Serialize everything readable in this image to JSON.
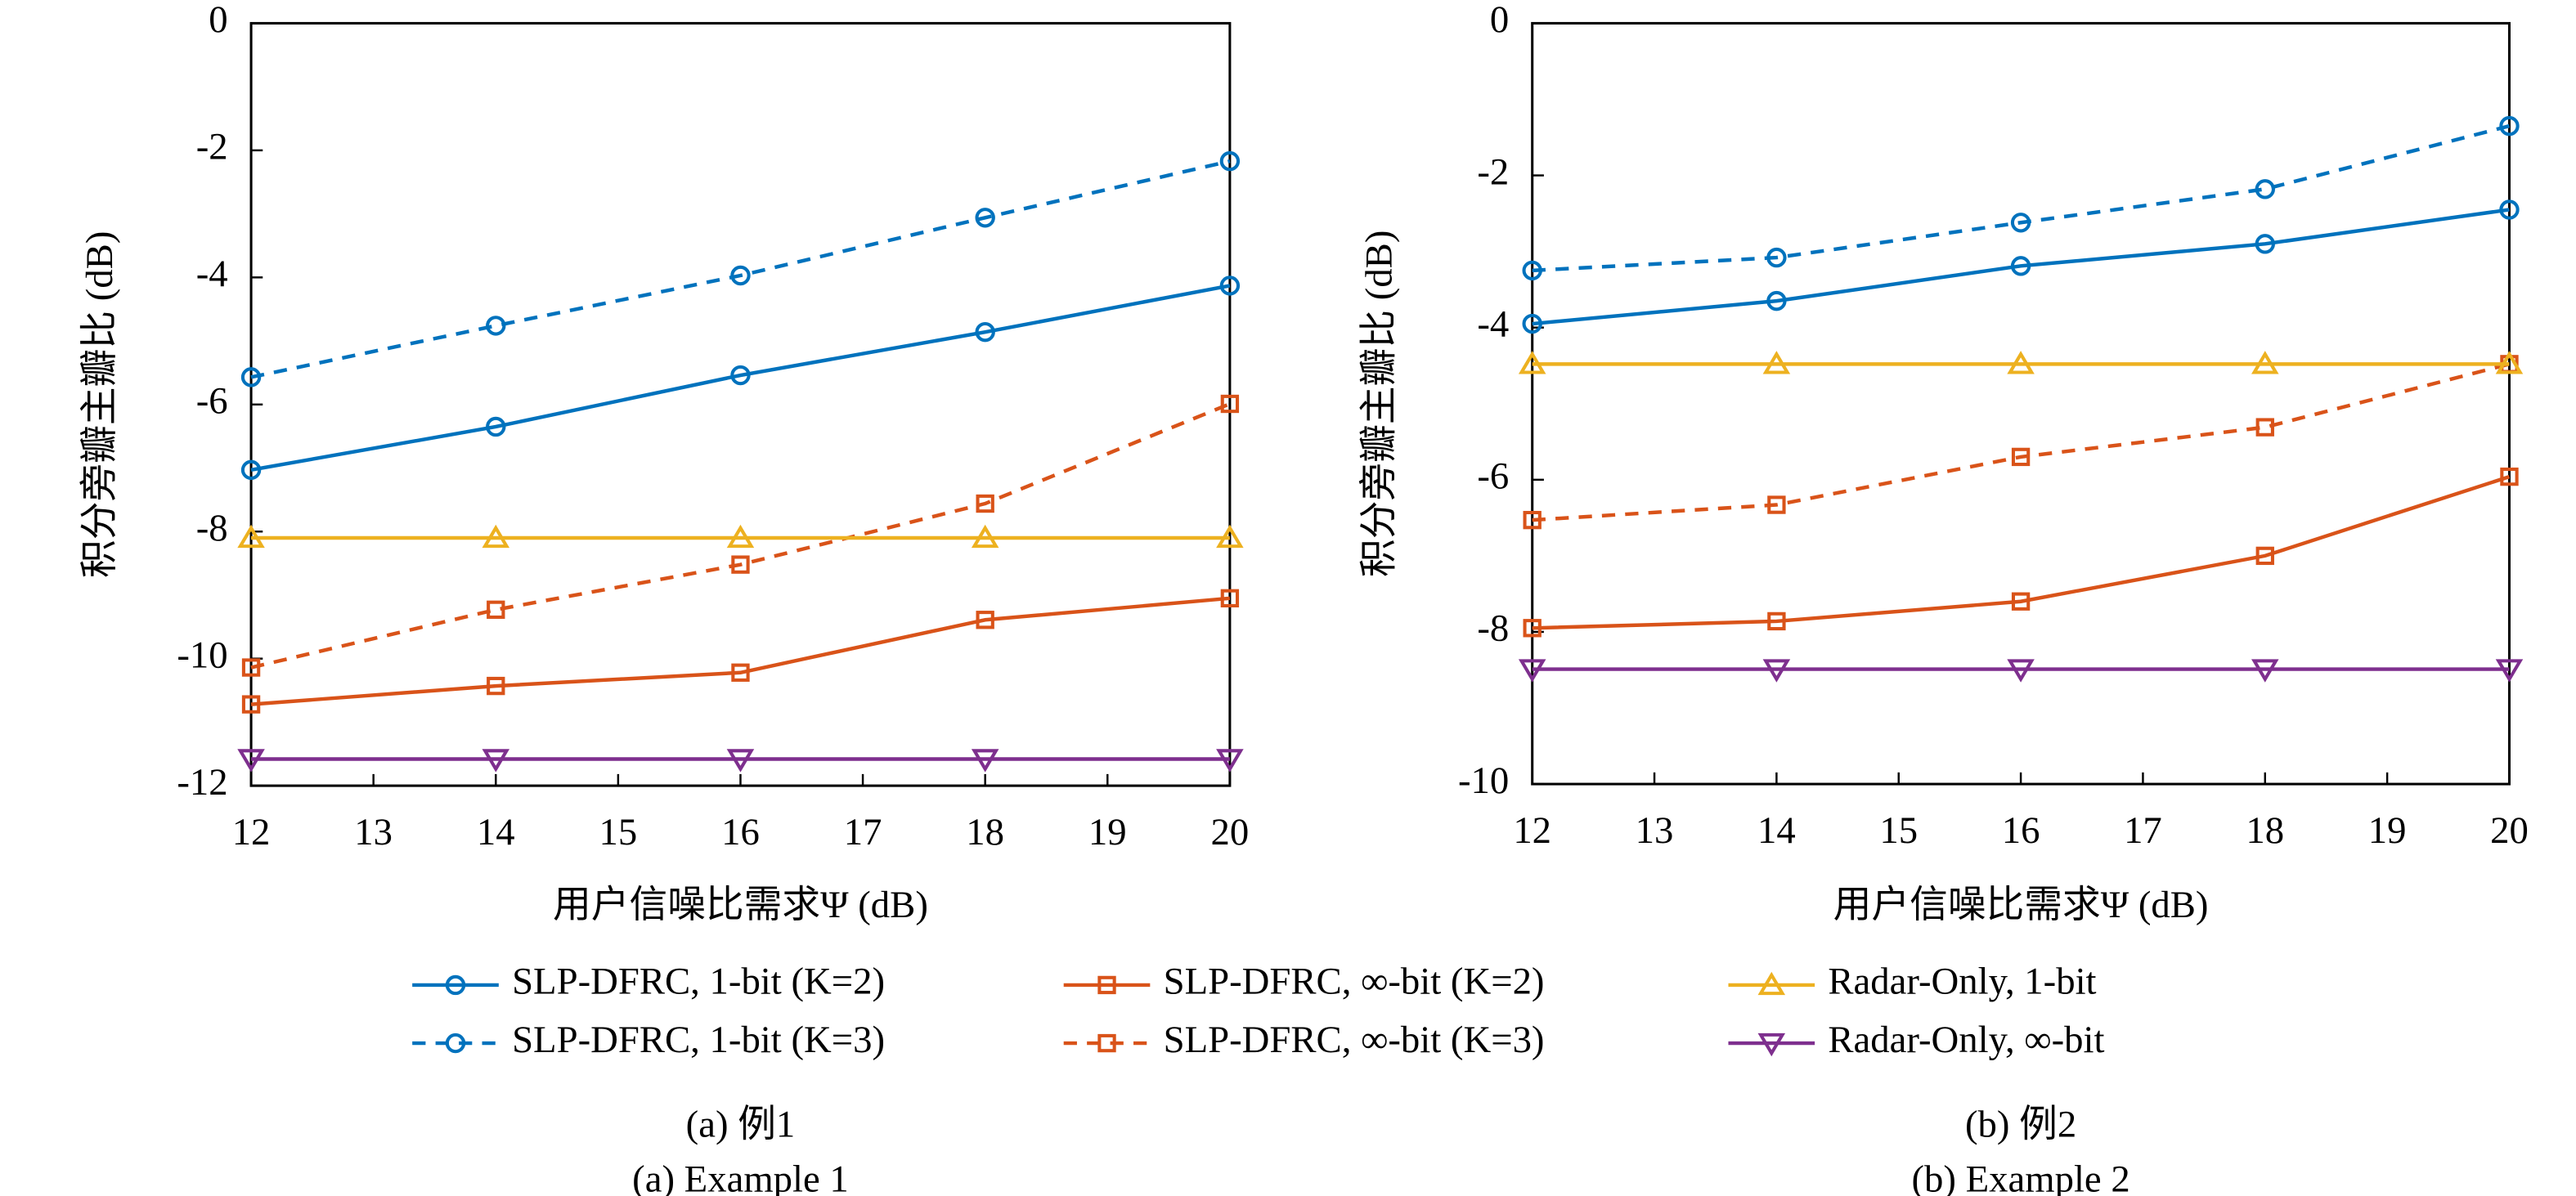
{
  "chart_data": [
    {
      "type": "line",
      "xlabel": "用户信噪比需求Ψ (dB)",
      "ylabel": "积分旁瓣主瓣比 (dB)",
      "caption": "(a) 例1",
      "caption_en": "(a) Example 1",
      "x": [
        12,
        14,
        16,
        18,
        20
      ],
      "xlim": [
        12,
        20
      ],
      "xticks": [
        12,
        13,
        14,
        15,
        16,
        17,
        18,
        19,
        20
      ],
      "ylim": [
        -12,
        0
      ],
      "yticks": [
        0,
        -2,
        -4,
        -6,
        -8,
        -10,
        -12
      ],
      "series": [
        {
          "name": "SLP-DFRC, 1-bit (K=2)",
          "color": "#0072BD",
          "dash": false,
          "marker": "circle",
          "values": [
            -7.03,
            -6.35,
            -5.54,
            -4.86,
            -4.13
          ]
        },
        {
          "name": "SLP-DFRC, 1-bit (K=3)",
          "color": "#0072BD",
          "dash": true,
          "marker": "circle",
          "values": [
            -5.57,
            -4.76,
            -3.97,
            -3.06,
            -2.17
          ]
        },
        {
          "name": "SLP-DFRC, ∞-bit (K=2)",
          "color": "#D95319",
          "dash": false,
          "marker": "square",
          "values": [
            -10.72,
            -10.43,
            -10.22,
            -9.39,
            -9.05
          ]
        },
        {
          "name": "SLP-DFRC, ∞-bit (K=3)",
          "color": "#D95319",
          "dash": true,
          "marker": "square",
          "values": [
            -10.14,
            -9.23,
            -8.52,
            -7.56,
            -5.99
          ]
        },
        {
          "name": "Radar-Only, 1-bit",
          "color": "#EDB120",
          "dash": false,
          "marker": "triangle-up",
          "values": [
            -8.1,
            -8.1,
            -8.1,
            -8.1,
            -8.1
          ]
        },
        {
          "name": "Radar-Only, ∞-bit",
          "color": "#7E2F8E",
          "dash": false,
          "marker": "triangle-down",
          "values": [
            -11.58,
            -11.58,
            -11.58,
            -11.58,
            -11.58
          ]
        }
      ]
    },
    {
      "type": "line",
      "xlabel": "用户信噪比需求Ψ (dB)",
      "ylabel": "积分旁瓣主瓣比 (dB)",
      "caption": "(b) 例2",
      "caption_en": "(b) Example 2",
      "x": [
        12,
        14,
        16,
        18,
        20
      ],
      "xlim": [
        12,
        20
      ],
      "xticks": [
        12,
        13,
        14,
        15,
        16,
        17,
        18,
        19,
        20
      ],
      "ylim": [
        -10,
        0
      ],
      "yticks": [
        0,
        -2,
        -4,
        -6,
        -8,
        -10
      ],
      "series": [
        {
          "color": "#0072BD",
          "dash": false,
          "marker": "circle",
          "values": [
            -3.95,
            -3.65,
            -3.19,
            -2.9,
            -2.45
          ]
        },
        {
          "color": "#0072BD",
          "dash": true,
          "marker": "circle",
          "values": [
            -3.25,
            -3.08,
            -2.62,
            -2.18,
            -1.35
          ]
        },
        {
          "color": "#D95319",
          "dash": false,
          "marker": "square",
          "values": [
            -7.95,
            -7.86,
            -7.6,
            -7.0,
            -5.96
          ]
        },
        {
          "color": "#D95319",
          "dash": true,
          "marker": "square",
          "values": [
            -6.53,
            -6.33,
            -5.7,
            -5.31,
            -4.48
          ]
        },
        {
          "color": "#EDB120",
          "dash": false,
          "marker": "triangle-up",
          "values": [
            -4.48,
            -4.48,
            -4.48,
            -4.48,
            -4.48
          ]
        },
        {
          "color": "#7E2F8E",
          "dash": false,
          "marker": "triangle-down",
          "values": [
            -8.49,
            -8.49,
            -8.49,
            -8.49,
            -8.49
          ]
        }
      ]
    }
  ]
}
